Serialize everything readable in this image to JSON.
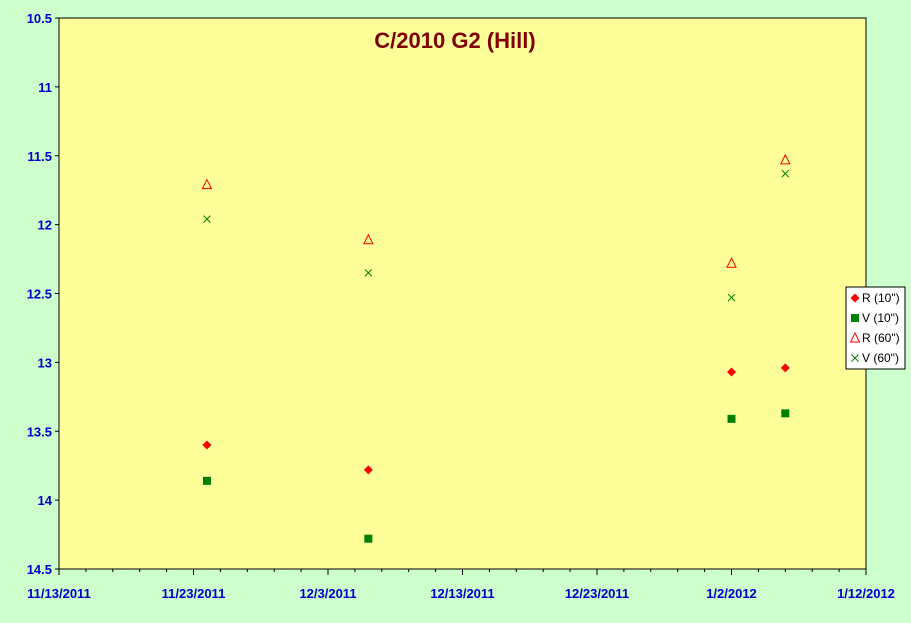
{
  "chart_data": {
    "type": "scatter",
    "title": "C/2010 G2 (Hill)",
    "xlabel": "",
    "ylabel": "",
    "y_inverted": true,
    "ylim": [
      10.5,
      14.5
    ],
    "xlim": [
      "2011-11-13",
      "2012-01-12"
    ],
    "y_ticks": [
      "10.5",
      "11",
      "11.5",
      "12",
      "12.5",
      "13",
      "13.5",
      "14",
      "14.5"
    ],
    "x_ticks": [
      "11/13/2011",
      "11/23/2011",
      "12/3/2011",
      "12/13/2011",
      "12/23/2011",
      "1/2/2012",
      "1/12/2012"
    ],
    "grid": false,
    "legend_position": "right",
    "colors": {
      "plot_background": "#ffff99",
      "page_background": "#ccffcc",
      "tick_label": "#0000cc",
      "title": "#800000",
      "red": "#ff0000",
      "green": "#008000"
    },
    "series": [
      {
        "name": "R (10\")",
        "marker": "diamond",
        "color": "#ff0000",
        "points": [
          {
            "x": "2011-11-24",
            "y": 13.6
          },
          {
            "x": "2011-12-06",
            "y": 13.78
          },
          {
            "x": "2012-01-02",
            "y": 13.07
          },
          {
            "x": "2012-01-06",
            "y": 13.04
          }
        ]
      },
      {
        "name": "V (10\")",
        "marker": "square",
        "color": "#008000",
        "points": [
          {
            "x": "2011-11-24",
            "y": 13.86
          },
          {
            "x": "2011-12-06",
            "y": 14.28
          },
          {
            "x": "2012-01-02",
            "y": 13.41
          },
          {
            "x": "2012-01-06",
            "y": 13.37
          }
        ]
      },
      {
        "name": "R (60\")",
        "marker": "triangle",
        "color": "#ff0000",
        "points": [
          {
            "x": "2011-11-24",
            "y": 11.71
          },
          {
            "x": "2011-12-06",
            "y": 12.11
          },
          {
            "x": "2012-01-02",
            "y": 12.28
          },
          {
            "x": "2012-01-06",
            "y": 11.53
          }
        ]
      },
      {
        "name": "V (60\")",
        "marker": "x",
        "color": "#008000",
        "points": [
          {
            "x": "2011-11-24",
            "y": 11.96
          },
          {
            "x": "2011-12-06",
            "y": 12.35
          },
          {
            "x": "2012-01-02",
            "y": 12.53
          },
          {
            "x": "2012-01-06",
            "y": 11.63
          }
        ]
      }
    ]
  }
}
